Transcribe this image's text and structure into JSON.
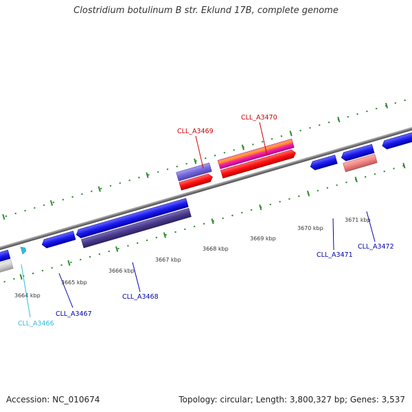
{
  "title": "Clostridium botulinum B str. Eklund 17B, complete genome",
  "footer": {
    "accession": "Accession: NC_010674",
    "summary": "Topology: circular; Length: 3,800,327 bp; Genes: 3,537"
  },
  "colors": {
    "backbone": "#8a8a8a",
    "tick": "#2e8b2e",
    "forward_label": "#cc0000",
    "reverse_label": "#0000aa",
    "highlight_label": "#33bbdd"
  },
  "scale_labels": [
    "3664 kbp",
    "3665 kbp",
    "3666 kbp",
    "3667 kbp",
    "3668 kbp",
    "3669 kbp",
    "3670 kbp",
    "3671 kbp"
  ],
  "gene_labels": [
    {
      "id": "CLL_A3466",
      "color": "#33bbdd"
    },
    {
      "id": "CLL_A3467",
      "color": "#0000aa"
    },
    {
      "id": "CLL_A3468",
      "color": "#0000aa"
    },
    {
      "id": "CLL_A3469",
      "color": "#cc0000"
    },
    {
      "id": "CLL_A3470",
      "color": "#cc0000"
    },
    {
      "id": "CLL_A3471",
      "color": "#0000aa"
    },
    {
      "id": "CLL_A3472",
      "color": "#0000aa"
    }
  ]
}
